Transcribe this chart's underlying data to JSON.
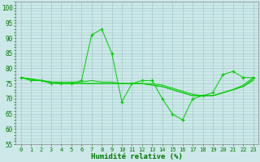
{
  "x": [
    0,
    1,
    2,
    3,
    4,
    5,
    6,
    7,
    8,
    9,
    10,
    11,
    12,
    13,
    14,
    15,
    16,
    17,
    18,
    19,
    20,
    21,
    22,
    23
  ],
  "y_main": [
    77,
    76,
    76,
    75,
    75,
    75,
    76,
    91,
    93,
    85,
    69,
    75,
    76,
    76,
    70,
    65,
    63,
    70,
    71,
    72,
    78,
    79,
    77,
    77
  ],
  "y_smooth1": [
    77,
    76.5,
    76,
    75.5,
    75.5,
    75.5,
    75.5,
    76,
    75.5,
    75.5,
    75,
    75,
    75,
    75,
    74.5,
    73.5,
    72.5,
    71.5,
    71,
    71,
    72,
    73,
    74,
    76
  ],
  "y_smooth2": [
    77,
    76.5,
    76,
    75.5,
    75,
    75,
    75,
    75,
    75,
    75,
    75,
    75,
    75,
    74.5,
    74,
    73,
    72,
    71,
    71,
    71,
    72,
    73,
    74,
    76.5
  ],
  "y_smooth3": [
    77,
    76.5,
    76,
    75.5,
    75,
    75,
    75,
    75,
    75,
    75,
    75,
    75,
    75,
    74.5,
    74,
    73,
    72,
    71,
    71,
    71,
    72,
    73,
    74.5,
    77
  ],
  "line_color": "#00cc00",
  "bg_color": "#cce8e8",
  "grid_color": "#b0d0d0",
  "xlabel": "Humidité relative (%)",
  "ylim": [
    55,
    102
  ],
  "xlim": [
    -0.5,
    23.5
  ],
  "yticks": [
    55,
    60,
    65,
    70,
    75,
    80,
    85,
    90,
    95,
    100
  ],
  "xticks": [
    0,
    1,
    2,
    3,
    4,
    5,
    6,
    7,
    8,
    9,
    10,
    11,
    12,
    13,
    14,
    15,
    16,
    17,
    18,
    19,
    20,
    21,
    22,
    23
  ]
}
